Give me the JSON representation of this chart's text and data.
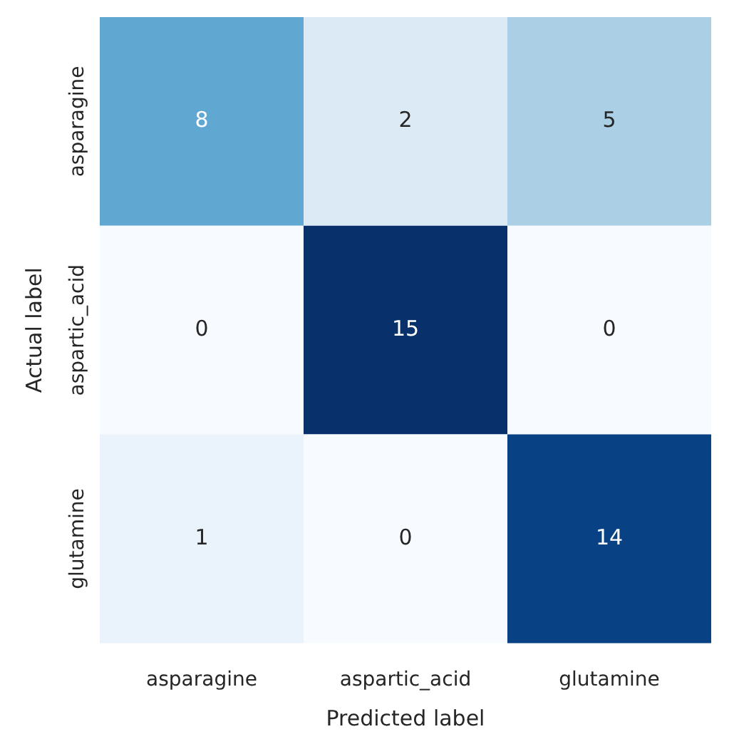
{
  "chart_data": {
    "type": "heatmap",
    "xlabel": "Predicted label",
    "ylabel": "Actual label",
    "categories": [
      "asparagine",
      "aspartic_acid",
      "glutamine"
    ],
    "y_categories": [
      "asparagine",
      "aspartic_acid",
      "glutamine"
    ],
    "cells": [
      [
        8,
        2,
        5
      ],
      [
        0,
        15,
        0
      ],
      [
        1,
        0,
        14
      ]
    ],
    "data_labels": true
  }
}
